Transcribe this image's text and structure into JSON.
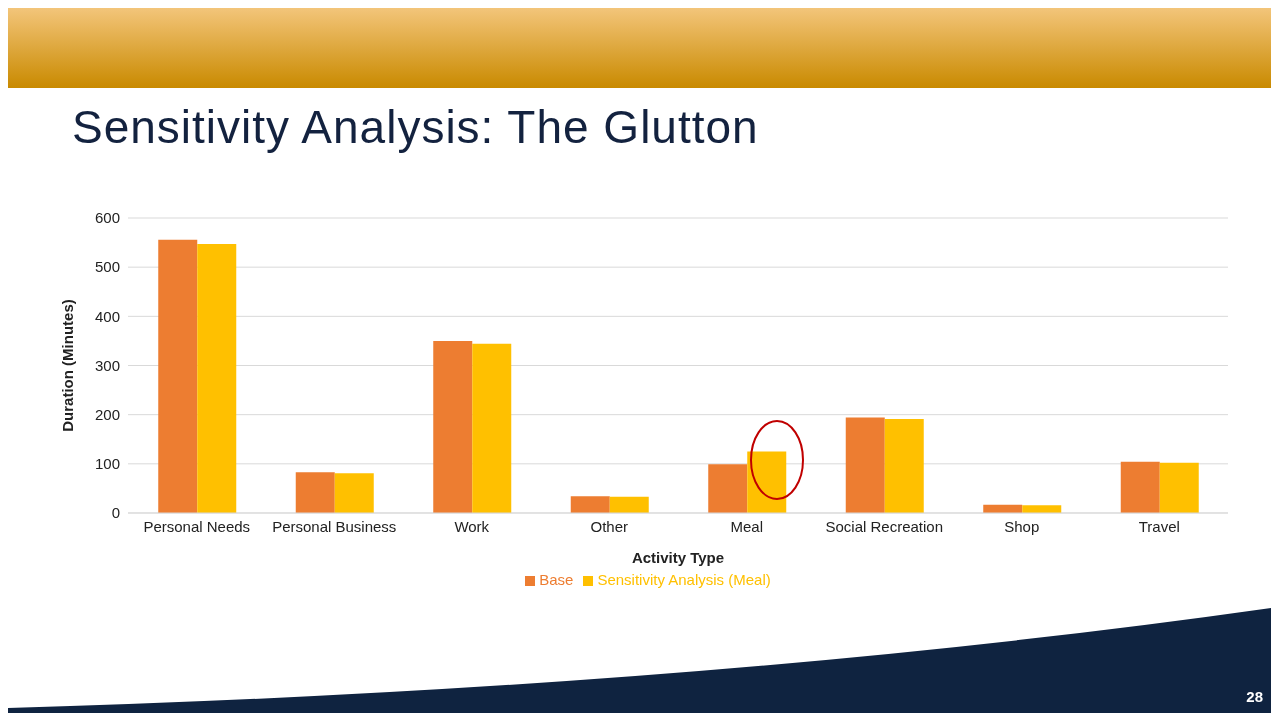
{
  "chart_data": {
    "type": "bar",
    "title": "Sensitivity Analysis: The Glutton",
    "xlabel": "Activity Type",
    "ylabel": "Duration (Minutes)",
    "categories": [
      "Personal Needs",
      "Personal Business",
      "Work",
      "Other",
      "Meal",
      "Social Recreation",
      "Shop",
      "Travel"
    ],
    "series": [
      {
        "name": "Base",
        "color": "#ed7d31",
        "values": [
          556,
          83,
          350,
          34,
          99,
          194,
          17,
          104
        ]
      },
      {
        "name": "Sensitivity Analysis (Meal)",
        "color": "#ffc000",
        "values": [
          547,
          81,
          344,
          33,
          125,
          191,
          16,
          102
        ]
      }
    ],
    "ylim": [
      0,
      600
    ],
    "yticks": [
      0,
      100,
      200,
      300,
      400,
      500,
      600
    ],
    "grid": "y",
    "legend": "bottom",
    "annotations": [
      "28"
    ]
  }
}
